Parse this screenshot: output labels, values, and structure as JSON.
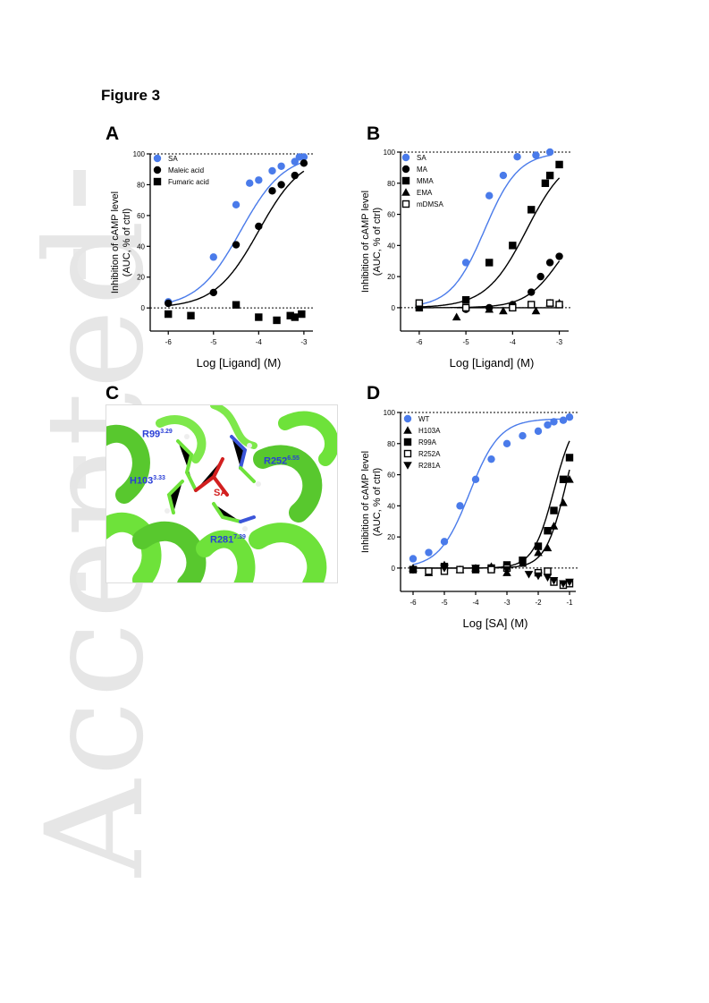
{
  "figure_title": "Figure 3",
  "watermark": "Accepted",
  "panels": {
    "A": {
      "letter": "A"
    },
    "B": {
      "letter": "B"
    },
    "C": {
      "letter": "C"
    },
    "D": {
      "letter": "D"
    }
  },
  "structure": {
    "labels": [
      {
        "name": "R99",
        "sup": "3.29"
      },
      {
        "name": "H103",
        "sup": "3.33"
      },
      {
        "name": "R252",
        "sup": "6.55"
      },
      {
        "name": "R281",
        "sup": "7.39"
      }
    ],
    "ligand": "SA"
  },
  "colors": {
    "blue": "#4a7bea",
    "black": "#000000",
    "helix": "#6ee23a",
    "ligand": "#d21f1f"
  },
  "chart_data": [
    {
      "id": "A",
      "type": "scatter",
      "xlabel": "Log [Ligand] (M)",
      "ylabel": "Inhibition of cAMP level (AUC, % of ctrl)",
      "xlim": [
        -6.4,
        -2.8
      ],
      "ylim": [
        -15,
        100
      ],
      "xticks": [
        -6,
        -5,
        -4,
        -3
      ],
      "yticks": [
        0,
        20,
        40,
        60,
        80,
        100
      ],
      "series": [
        {
          "name": "SA",
          "color": "#4a7bea",
          "marker": "circle",
          "x": [
            -6,
            -5,
            -4.5,
            -4.2,
            -4,
            -3.7,
            -3.5,
            -3.2,
            -3.1,
            -3
          ],
          "y": [
            4,
            33,
            67,
            81,
            83,
            89,
            92,
            95,
            98,
            98
          ],
          "fit": {
            "bottom": 0,
            "top": 100,
            "logEC50": -4.4,
            "hill": 0.9
          }
        },
        {
          "name": "Maleic acid",
          "color": "#000000",
          "marker": "circle",
          "x": [
            -6,
            -5,
            -4.5,
            -4,
            -3.7,
            -3.5,
            -3.2,
            -3
          ],
          "y": [
            3,
            10,
            41,
            53,
            76,
            80,
            86,
            94
          ],
          "fit": {
            "bottom": 0,
            "top": 100,
            "logEC50": -4.0,
            "hill": 0.9
          }
        },
        {
          "name": "Fumaric acid",
          "color": "#000000",
          "marker": "square",
          "x": [
            -6,
            -5.5,
            -4.5,
            -4,
            -3.6,
            -3.3,
            -3.2,
            -3.05
          ],
          "y": [
            -4,
            -5,
            2,
            -6,
            -8,
            -5,
            -6,
            -4
          ]
        }
      ]
    },
    {
      "id": "B",
      "type": "scatter",
      "xlabel": "Log [Ligand] (M)",
      "ylabel": "Inhibition of cAMP level (AUC, % of ctrl)",
      "xlim": [
        -6.4,
        -2.8
      ],
      "ylim": [
        -15,
        100
      ],
      "xticks": [
        -6,
        -5,
        -4,
        -3
      ],
      "yticks": [
        0,
        20,
        40,
        60,
        80,
        100
      ],
      "series": [
        {
          "name": "SA",
          "color": "#4a7bea",
          "marker": "circle",
          "x": [
            -6,
            -5,
            -4.5,
            -4.2,
            -3.9,
            -3.5,
            -3.2
          ],
          "y": [
            1,
            29,
            72,
            85,
            97,
            98,
            100
          ],
          "fit": {
            "bottom": 0,
            "top": 100,
            "logEC50": -4.6,
            "hill": 1.2
          }
        },
        {
          "name": "MA",
          "color": "#000000",
          "marker": "circle",
          "x": [
            -6,
            -5,
            -4.5,
            -4,
            -3.6,
            -3.4,
            -3.2,
            -3
          ],
          "y": [
            0,
            -1,
            0,
            2,
            10,
            20,
            29,
            33
          ],
          "fit": {
            "bottom": 0,
            "top": 60,
            "logEC50": -3.0,
            "hill": 1.2
          }
        },
        {
          "name": "MMA",
          "color": "#000000",
          "marker": "square",
          "x": [
            -6,
            -5,
            -4.5,
            -4,
            -3.6,
            -3.3,
            -3.2,
            -3
          ],
          "y": [
            0,
            5,
            29,
            40,
            63,
            80,
            85,
            92
          ],
          "fit": {
            "bottom": 0,
            "top": 100,
            "logEC50": -3.7,
            "hill": 1.0
          }
        },
        {
          "name": "EMA",
          "color": "#000000",
          "marker": "triangle",
          "x": [
            -5.2,
            -4.5,
            -4.2,
            -3.5,
            -3.2,
            -3
          ],
          "y": [
            -6,
            -1,
            -2,
            -2,
            3,
            3
          ],
          "fit": {
            "bottom": 0,
            "top": 0,
            "logEC50": -3.0,
            "hill": 1.0
          }
        },
        {
          "name": "mDMSA",
          "color": "#000000",
          "marker": "open-square",
          "x": [
            -6,
            -5,
            -4,
            -3.6,
            -3.2,
            -3
          ],
          "y": [
            3,
            0,
            0,
            2,
            3,
            2
          ]
        }
      ]
    },
    {
      "id": "D",
      "type": "scatter",
      "xlabel": "Log [SA] (M)",
      "ylabel": "Inhibition of cAMP level (AUC, % of ctrl)",
      "xlim": [
        -6.4,
        -0.8
      ],
      "ylim": [
        -15,
        100
      ],
      "xticks": [
        -6,
        -5,
        -4,
        -3,
        -2,
        -1
      ],
      "yticks": [
        0,
        20,
        40,
        60,
        80,
        100
      ],
      "series": [
        {
          "name": "WT",
          "color": "#4a7bea",
          "marker": "circle",
          "x": [
            -6,
            -5.5,
            -5,
            -4.5,
            -4,
            -3.5,
            -3,
            -2.5,
            -2,
            -1.7,
            -1.5,
            -1.2,
            -1
          ],
          "y": [
            6,
            10,
            17,
            40,
            57,
            70,
            80,
            85,
            88,
            92,
            94,
            95,
            97
          ],
          "fit": {
            "bottom": 0,
            "top": 96,
            "logEC50": -4.2,
            "hill": 0.9
          }
        },
        {
          "name": "H103A",
          "color": "#000000",
          "marker": "triangle",
          "x": [
            -6,
            -5.5,
            -5,
            -4.5,
            -4,
            -3.5,
            -3,
            -2.5,
            -2,
            -1.7,
            -1.5,
            -1.2,
            -1
          ],
          "y": [
            0,
            -3,
            2,
            -1,
            0,
            1,
            -3,
            3,
            10,
            13,
            27,
            42,
            57
          ],
          "fit": {
            "bottom": 0,
            "top": 110,
            "logEC50": -1.1,
            "hill": 1.3
          }
        },
        {
          "name": "R99A",
          "color": "#000000",
          "marker": "square",
          "x": [
            -6,
            -5,
            -4,
            -3.5,
            -3,
            -2.5,
            -2,
            -1.7,
            -1.5,
            -1.2,
            -1
          ],
          "y": [
            -1,
            1,
            -1,
            0,
            2,
            5,
            14,
            24,
            37,
            57,
            71
          ],
          "fit": {
            "bottom": 0,
            "top": 100,
            "logEC50": -1.5,
            "hill": 1.3
          }
        },
        {
          "name": "R252A",
          "color": "#000000",
          "marker": "open-square",
          "x": [
            -5.5,
            -5,
            -4.5,
            -3.5,
            -3,
            -2,
            -1.7,
            -1.5,
            -1.2,
            -1
          ],
          "y": [
            -2,
            -2,
            -1,
            -1,
            0,
            -3,
            -2,
            -9,
            -11,
            -10
          ]
        },
        {
          "name": "R281A",
          "color": "#000000",
          "marker": "down-triangle",
          "x": [
            -6,
            -5,
            -4,
            -3,
            -2.3,
            -2,
            -1.7,
            -1.5,
            -1.2,
            -1
          ],
          "y": [
            -1,
            0,
            0,
            -1,
            -4,
            -5,
            -6,
            -8,
            -10,
            -9
          ]
        }
      ]
    }
  ]
}
